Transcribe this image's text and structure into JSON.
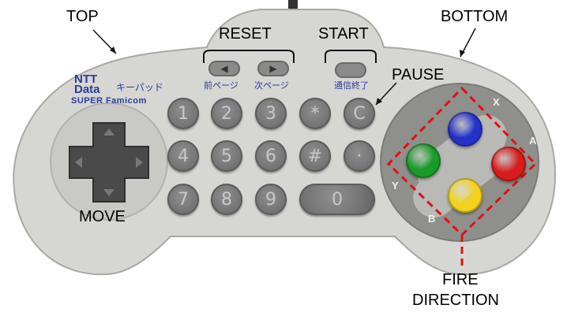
{
  "labels": {
    "top": "TOP",
    "reset": "RESET",
    "start": "START",
    "bottom": "BOTTOM",
    "pause": "PAUSE",
    "move": "MOVE",
    "fire": "FIRE",
    "direction": "DIRECTION"
  },
  "brand": {
    "line1": "NTT",
    "line2": "Data",
    "product": "キーパッド",
    "subtitle": "SUPER Famicom"
  },
  "small_labels": {
    "prev_page": "前ページ",
    "next_page": "次ページ",
    "comm_end": "通信終了"
  },
  "keys": [
    "1",
    "2",
    "3",
    "*",
    "C",
    "4",
    "5",
    "6",
    "#",
    "·",
    "7",
    "8",
    "9"
  ],
  "wide_key": "0",
  "face_buttons": {
    "x": {
      "label": "X",
      "color": "#2333c8"
    },
    "a": {
      "label": "A",
      "color": "#d81b1b"
    },
    "y": {
      "label": "Y",
      "color": "#1a9a2a"
    },
    "b": {
      "label": "B",
      "color": "#f2d21a"
    }
  },
  "colors": {
    "body": "#d6d6d2",
    "label_text": "#000000",
    "dashed_box": "#e01010",
    "brand_blue": "#2a3d9a"
  }
}
